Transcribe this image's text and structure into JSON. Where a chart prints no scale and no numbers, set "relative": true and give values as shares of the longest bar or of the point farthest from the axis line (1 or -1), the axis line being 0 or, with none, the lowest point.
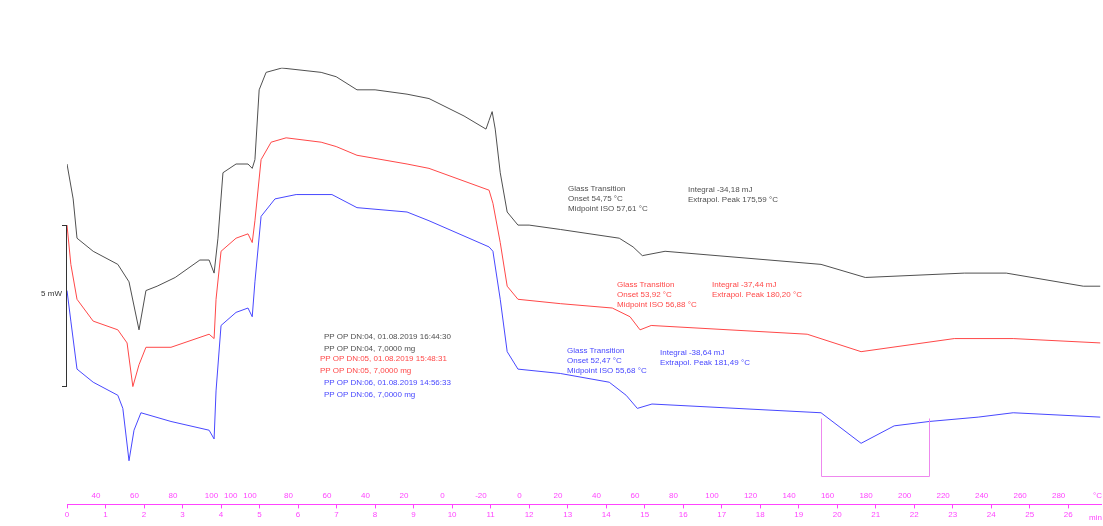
{
  "chart_data": {
    "type": "line",
    "relative": true,
    "xlabel": "min",
    "ylabel": "5 mW",
    "xlim": [
      0,
      26.85
    ],
    "xticks": [
      0,
      1,
      2,
      3,
      4,
      5,
      6,
      7,
      8,
      9,
      10,
      11,
      12,
      13,
      14,
      15,
      16,
      17,
      18,
      19,
      20,
      21,
      22,
      23,
      24,
      25,
      26
    ],
    "ref_lines": [
      {
        "axis": "x",
        "value": 19.58,
        "color": "#ee88ee"
      },
      {
        "axis": "x",
        "value": 22.39,
        "color": "#ee88ee"
      }
    ],
    "grid": false,
    "legend": false,
    "marker": "none",
    "line_style": "solid",
    "series": [
      {
        "name": "PP OP DN:04, 01.08.2019 16:44:30",
        "color": "#505050",
        "x": [
          0,
          0.16,
          0.26,
          0.68,
          1.32,
          1.61,
          1.87,
          2.05,
          2.34,
          2.81,
          3.45,
          3.69,
          3.82,
          3.92,
          4.05,
          4.39,
          4.7,
          4.81,
          4.88,
          4.99,
          5.17,
          5.58,
          6.6,
          6.99,
          7.53,
          8.0,
          8.83,
          9.4,
          10.31,
          10.88,
          10.96,
          11.04,
          11.12,
          11.25,
          11.43,
          11.71,
          12.0,
          12.81,
          14.34,
          14.7,
          14.94,
          15.53,
          19.58,
          20.73,
          23.3,
          24.39,
          26.39,
          26.83
        ],
        "values": [
          0.78,
          0.7,
          0.61,
          0.58,
          0.55,
          0.51,
          0.4,
          0.49,
          0.5,
          0.52,
          0.56,
          0.56,
          0.53,
          0.61,
          0.76,
          0.78,
          0.78,
          0.77,
          0.79,
          0.95,
          0.99,
          1.0,
          0.99,
          0.98,
          0.95,
          0.95,
          0.94,
          0.93,
          0.89,
          0.86,
          0.88,
          0.9,
          0.86,
          0.76,
          0.67,
          0.64,
          0.64,
          0.63,
          0.61,
          0.59,
          0.57,
          0.58,
          0.55,
          0.52,
          0.53,
          0.53,
          0.5,
          0.5
        ]
      },
      {
        "name": "PP OP DN:05, 01.08.2019 15:48:31",
        "color": "#ff4848",
        "x": [
          0,
          0.1,
          0.26,
          0.68,
          1.32,
          1.56,
          1.71,
          1.87,
          2.05,
          2.7,
          3.69,
          3.82,
          3.87,
          4.0,
          4.39,
          4.7,
          4.81,
          4.88,
          5.04,
          5.3,
          5.69,
          6.6,
          6.99,
          7.53,
          8.83,
          9.4,
          10.96,
          11.06,
          11.25,
          11.43,
          11.71,
          12.81,
          14.16,
          14.62,
          14.88,
          15.17,
          19.22,
          20.62,
          23.04,
          24.57,
          26.83
        ],
        "values": [
          0.64,
          0.55,
          0.47,
          0.42,
          0.4,
          0.37,
          0.27,
          0.32,
          0.36,
          0.36,
          0.39,
          0.38,
          0.47,
          0.58,
          0.61,
          0.62,
          0.6,
          0.65,
          0.79,
          0.83,
          0.84,
          0.83,
          0.82,
          0.8,
          0.78,
          0.77,
          0.72,
          0.69,
          0.6,
          0.5,
          0.47,
          0.46,
          0.45,
          0.43,
          0.4,
          0.41,
          0.39,
          0.35,
          0.38,
          0.38,
          0.37
        ]
      },
      {
        "name": "PP OP DN:06, 01.08.2019 14:56:33",
        "color": "#4848ff",
        "x": [
          0,
          0.1,
          0.26,
          0.68,
          1.32,
          1.45,
          1.61,
          1.74,
          1.92,
          2.7,
          3.69,
          3.82,
          3.87,
          4.0,
          4.39,
          4.7,
          4.81,
          4.88,
          5.04,
          5.4,
          5.95,
          6.88,
          7.53,
          8.83,
          9.4,
          10.96,
          11.06,
          11.25,
          11.43,
          11.71,
          12.81,
          14.08,
          14.52,
          14.81,
          15.19,
          19.58,
          20.62,
          21.48,
          22.39,
          23.66,
          24.57,
          26.83
        ],
        "values": [
          0.49,
          0.42,
          0.31,
          0.28,
          0.25,
          0.22,
          0.1,
          0.17,
          0.21,
          0.19,
          0.17,
          0.15,
          0.26,
          0.41,
          0.44,
          0.45,
          0.43,
          0.51,
          0.66,
          0.7,
          0.71,
          0.71,
          0.68,
          0.67,
          0.65,
          0.59,
          0.58,
          0.47,
          0.35,
          0.31,
          0.3,
          0.28,
          0.25,
          0.22,
          0.23,
          0.21,
          0.14,
          0.18,
          0.19,
          0.2,
          0.21,
          0.2
        ]
      }
    ],
    "annotations": [
      "PP OP DN:04, 7,0000 mg",
      "PP OP DN:05, 7,0000 mg",
      "PP OP DN:06, 7,0000 mg",
      "Glass Transition",
      "Onset 54,75 °C",
      "Midpoint ISO 57,61 °C",
      "Integral -34,18 mJ",
      "Extrapol. Peak 175,59 °C",
      "Glass Transition",
      "Onset 53,92 °C",
      "Midpoint ISO 56,88 °C",
      "Integral -37,44 mJ",
      "Extrapol. Peak 180,20 °C",
      "Glass Transition",
      "Onset 52,47 °C",
      "Midpoint ISO 55,68 °C",
      "Integral -38,64 mJ",
      "Extrapol. Peak 181,49 °C",
      "40",
      "60",
      "80",
      "100",
      "100",
      "100",
      "80",
      "60",
      "40",
      "20",
      "0",
      "-20",
      "0",
      "20",
      "40",
      "60",
      "80",
      "100",
      "120",
      "140",
      "160",
      "180",
      "200",
      "220",
      "240",
      "260",
      "280",
      "°C"
    ]
  }
}
